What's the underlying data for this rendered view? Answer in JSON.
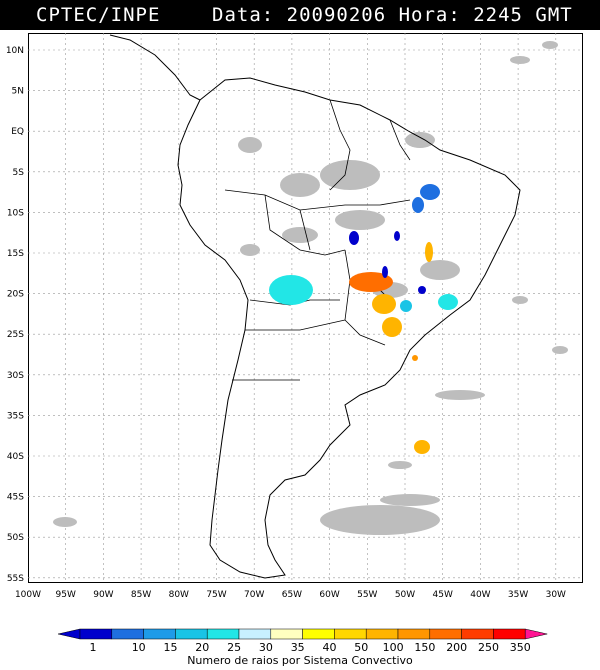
{
  "header": {
    "source": "CPTEC/INPE",
    "datetime": "Data: 20090206 Hora: 2245 GMT"
  },
  "map": {
    "lat_labels": [
      "10N",
      "5N",
      "EQ",
      "5S",
      "10S",
      "15S",
      "20S",
      "25S",
      "30S",
      "35S",
      "40S",
      "45S",
      "50S",
      "55S"
    ],
    "lon_labels": [
      "100W",
      "95W",
      "90W",
      "85W",
      "80W",
      "75W",
      "70W",
      "65W",
      "60W",
      "55W",
      "50W",
      "45W",
      "40W",
      "35W",
      "30W"
    ],
    "land_color": "#ffffff",
    "border_color": "#000000",
    "cloud_color": "#bdbdbd",
    "grid_style": "dotted"
  },
  "legend": {
    "caption": "Numero de raios por Sistema Convectivo",
    "classes": [
      {
        "value": "1",
        "color": "#0000cc"
      },
      {
        "value": "10",
        "color": "#1e6fe0"
      },
      {
        "value": "15",
        "color": "#1e9be8"
      },
      {
        "value": "20",
        "color": "#19c4e6"
      },
      {
        "value": "25",
        "color": "#22e6e6"
      },
      {
        "value": "30",
        "color": "#c8f0ff"
      },
      {
        "value": "35",
        "color": "#ffffc0"
      },
      {
        "value": "40",
        "color": "#ffff00"
      },
      {
        "value": "50",
        "color": "#ffd700"
      },
      {
        "value": "100",
        "color": "#ffb400"
      },
      {
        "value": "150",
        "color": "#ff9600"
      },
      {
        "value": "200",
        "color": "#ff6e00"
      },
      {
        "value": "250",
        "color": "#ff3c00"
      },
      {
        "value": "350",
        "color": "#ff0000"
      }
    ],
    "end_color": "#ff1493"
  }
}
